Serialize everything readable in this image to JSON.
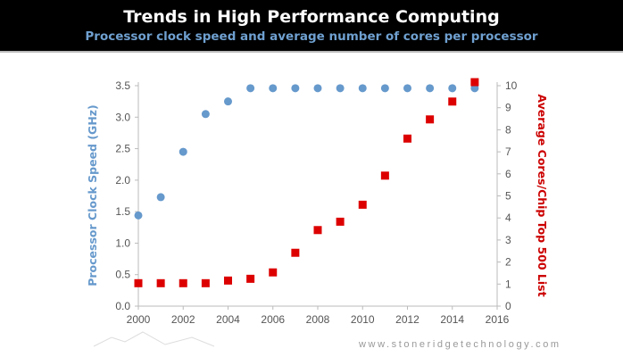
{
  "header": {
    "title": "Trends in High Performance Computing",
    "subtitle": "Processor clock speed and average number of cores per processor"
  },
  "footer": {
    "url": "www.stoneridgetechnology.com"
  },
  "chart_data": {
    "type": "scatter",
    "title": "Trends in High Performance Computing",
    "subtitle": "Processor clock speed and average number of cores per processor",
    "xlim": [
      2000,
      2016
    ],
    "xticks": [
      2000,
      2002,
      2004,
      2006,
      2008,
      2010,
      2012,
      2014,
      2016
    ],
    "y_left": {
      "label": "Processor Clock Speed (GHz)",
      "lim": [
        0,
        3.5
      ],
      "ticks": [
        "0.0",
        "0.5",
        "1.0",
        "1.5",
        "2.0",
        "2.5",
        "3.0",
        "3.5"
      ],
      "color": "#6699cc"
    },
    "y_right": {
      "label": "Average Cores/Chip Top 500 List",
      "lim": [
        0,
        10
      ],
      "ticks": [
        "0",
        "1",
        "2",
        "3",
        "4",
        "5",
        "6",
        "7",
        "8",
        "9",
        "10"
      ],
      "color": "#dd0000"
    },
    "grid": false,
    "series": [
      {
        "axis": "left",
        "marker": "circle",
        "color": "#6699cc",
        "x": [
          2000,
          2001,
          2002,
          2003,
          2004,
          2005,
          2006,
          2007,
          2008,
          2009,
          2010,
          2011,
          2012,
          2013,
          2014,
          2015
        ],
        "y": [
          1.44,
          1.73,
          2.45,
          3.05,
          3.25,
          3.46,
          3.46,
          3.46,
          3.46,
          3.46,
          3.46,
          3.46,
          3.46,
          3.46,
          3.46,
          3.46
        ]
      },
      {
        "axis": "right",
        "marker": "square",
        "color": "#dd0000",
        "x": [
          2000,
          2001,
          2002,
          2003,
          2004,
          2005,
          2006,
          2007,
          2008,
          2009,
          2010,
          2011,
          2012,
          2013,
          2014,
          2015
        ],
        "y": [
          1.04,
          1.04,
          1.04,
          1.04,
          1.16,
          1.24,
          1.53,
          2.42,
          3.45,
          3.83,
          4.6,
          5.92,
          7.6,
          8.47,
          9.28,
          10.16
        ]
      }
    ]
  }
}
